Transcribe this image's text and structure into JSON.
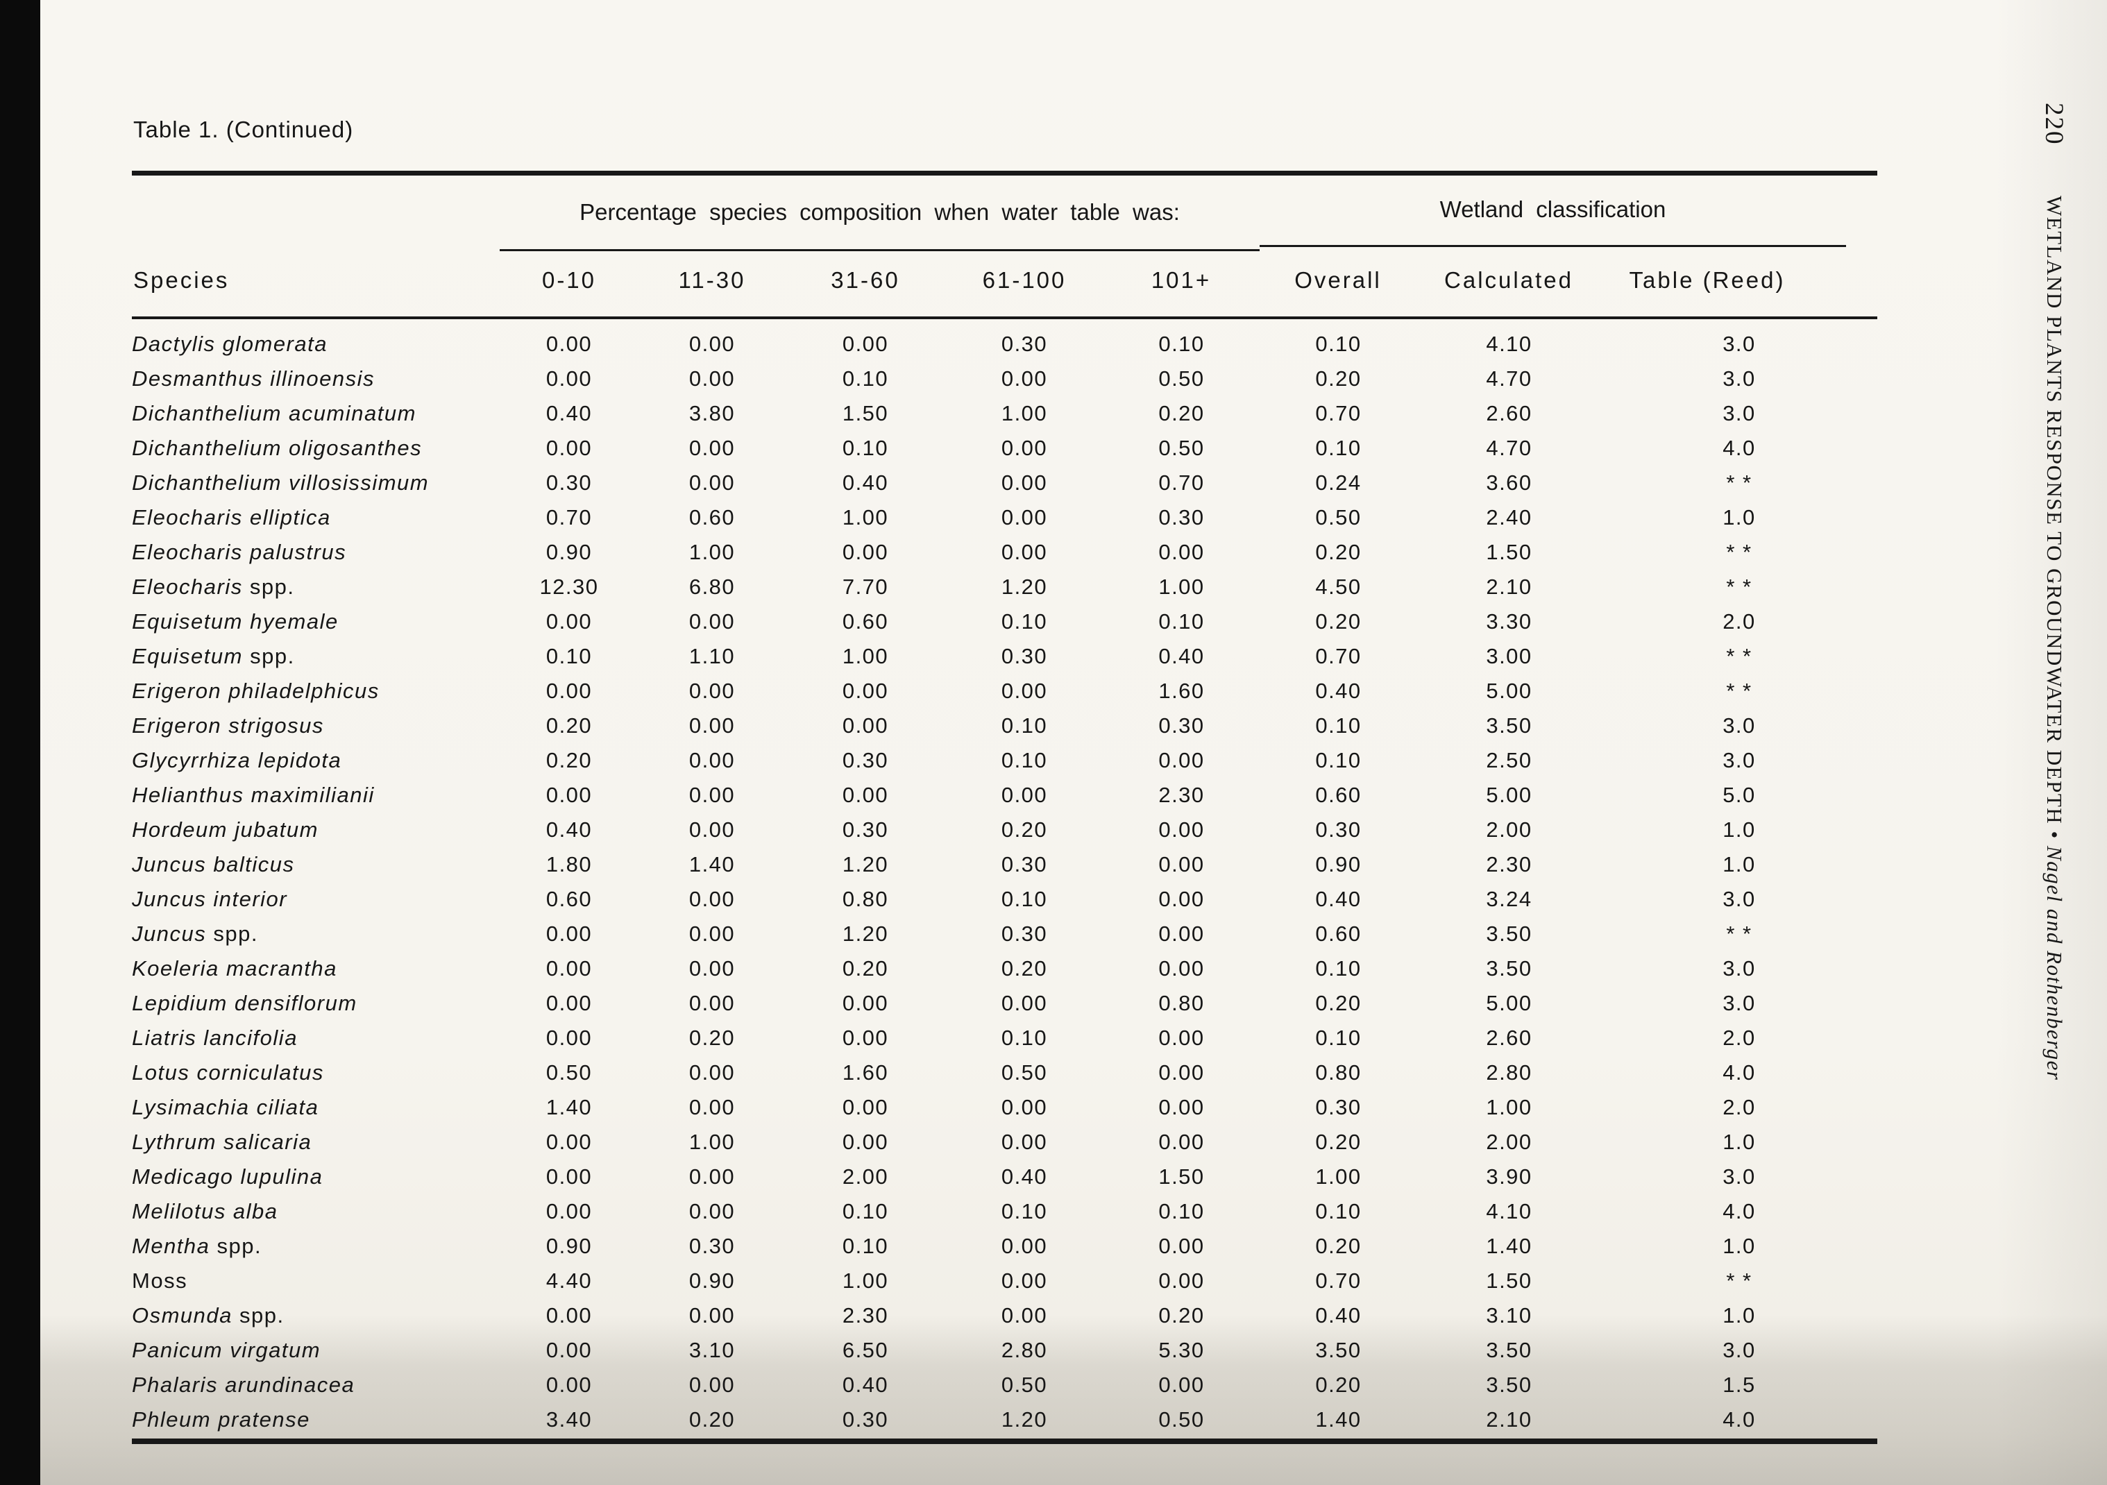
{
  "page": {
    "table_label": "Table 1.  (Continued)",
    "page_number": "220",
    "running_head": "WETLAND PLANTS RESPONSE TO GROUNDWATER DEPTH",
    "running_sep": " • ",
    "running_authors": "Nagel and Rothenberger"
  },
  "table": {
    "group_headers": {
      "percent": "Percentage species composition when water table was:",
      "wetland": "Wetland classification"
    },
    "columns": {
      "species": "Species",
      "c1": "0-10",
      "c2": "11-30",
      "c3": "31-60",
      "c4": "61-100",
      "c5": "101+",
      "c6": "Overall",
      "c7": "Calculated",
      "c8": "Table (Reed)"
    },
    "rows": [
      {
        "sp_i": "Dactylis glomerata",
        "sp_r": "",
        "vals": [
          "0.00",
          "0.00",
          "0.00",
          "0.30",
          "0.10",
          "0.10",
          "4.10",
          "3.0"
        ]
      },
      {
        "sp_i": "Desmanthus illinoensis",
        "sp_r": "",
        "vals": [
          "0.00",
          "0.00",
          "0.10",
          "0.00",
          "0.50",
          "0.20",
          "4.70",
          "3.0"
        ]
      },
      {
        "sp_i": "Dichanthelium acuminatum",
        "sp_r": "",
        "vals": [
          "0.40",
          "3.80",
          "1.50",
          "1.00",
          "0.20",
          "0.70",
          "2.60",
          "3.0"
        ]
      },
      {
        "sp_i": "Dichanthelium oligosanthes",
        "sp_r": "",
        "vals": [
          "0.00",
          "0.00",
          "0.10",
          "0.00",
          "0.50",
          "0.10",
          "4.70",
          "4.0"
        ]
      },
      {
        "sp_i": "Dichanthelium villosissimum",
        "sp_r": "",
        "vals": [
          "0.30",
          "0.00",
          "0.40",
          "0.00",
          "0.70",
          "0.24",
          "3.60",
          "* *"
        ]
      },
      {
        "sp_i": "Eleocharis elliptica",
        "sp_r": "",
        "vals": [
          "0.70",
          "0.60",
          "1.00",
          "0.00",
          "0.30",
          "0.50",
          "2.40",
          "1.0"
        ]
      },
      {
        "sp_i": "Eleocharis palustrus",
        "sp_r": "",
        "vals": [
          "0.90",
          "1.00",
          "0.00",
          "0.00",
          "0.00",
          "0.20",
          "1.50",
          "* *"
        ]
      },
      {
        "sp_i": "Eleocharis",
        "sp_r": " spp.",
        "vals": [
          "12.30",
          "6.80",
          "7.70",
          "1.20",
          "1.00",
          "4.50",
          "2.10",
          "* *"
        ]
      },
      {
        "sp_i": "Equisetum hyemale",
        "sp_r": "",
        "vals": [
          "0.00",
          "0.00",
          "0.60",
          "0.10",
          "0.10",
          "0.20",
          "3.30",
          "2.0"
        ]
      },
      {
        "sp_i": "Equisetum",
        "sp_r": " spp.",
        "vals": [
          "0.10",
          "1.10",
          "1.00",
          "0.30",
          "0.40",
          "0.70",
          "3.00",
          "* *"
        ]
      },
      {
        "sp_i": "Erigeron philadelphicus",
        "sp_r": "",
        "vals": [
          "0.00",
          "0.00",
          "0.00",
          "0.00",
          "1.60",
          "0.40",
          "5.00",
          "* *"
        ]
      },
      {
        "sp_i": "Erigeron strigosus",
        "sp_r": "",
        "vals": [
          "0.20",
          "0.00",
          "0.00",
          "0.10",
          "0.30",
          "0.10",
          "3.50",
          "3.0"
        ]
      },
      {
        "sp_i": "Glycyrrhiza lepidota",
        "sp_r": "",
        "vals": [
          "0.20",
          "0.00",
          "0.30",
          "0.10",
          "0.00",
          "0.10",
          "2.50",
          "3.0"
        ]
      },
      {
        "sp_i": "Helianthus maximilianii",
        "sp_r": "",
        "vals": [
          "0.00",
          "0.00",
          "0.00",
          "0.00",
          "2.30",
          "0.60",
          "5.00",
          "5.0"
        ]
      },
      {
        "sp_i": "Hordeum jubatum",
        "sp_r": "",
        "vals": [
          "0.40",
          "0.00",
          "0.30",
          "0.20",
          "0.00",
          "0.30",
          "2.00",
          "1.0"
        ]
      },
      {
        "sp_i": "Juncus balticus",
        "sp_r": "",
        "vals": [
          "1.80",
          "1.40",
          "1.20",
          "0.30",
          "0.00",
          "0.90",
          "2.30",
          "1.0"
        ]
      },
      {
        "sp_i": "Juncus interior",
        "sp_r": "",
        "vals": [
          "0.60",
          "0.00",
          "0.80",
          "0.10",
          "0.00",
          "0.40",
          "3.24",
          "3.0"
        ]
      },
      {
        "sp_i": "Juncus",
        "sp_r": " spp.",
        "vals": [
          "0.00",
          "0.00",
          "1.20",
          "0.30",
          "0.00",
          "0.60",
          "3.50",
          "* *"
        ]
      },
      {
        "sp_i": "Koeleria macrantha",
        "sp_r": "",
        "vals": [
          "0.00",
          "0.00",
          "0.20",
          "0.20",
          "0.00",
          "0.10",
          "3.50",
          "3.0"
        ]
      },
      {
        "sp_i": "Lepidium densiflorum",
        "sp_r": "",
        "vals": [
          "0.00",
          "0.00",
          "0.00",
          "0.00",
          "0.80",
          "0.20",
          "5.00",
          "3.0"
        ]
      },
      {
        "sp_i": "Liatris lancifolia",
        "sp_r": "",
        "vals": [
          "0.00",
          "0.20",
          "0.00",
          "0.10",
          "0.00",
          "0.10",
          "2.60",
          "2.0"
        ]
      },
      {
        "sp_i": "Lotus corniculatus",
        "sp_r": "",
        "vals": [
          "0.50",
          "0.00",
          "1.60",
          "0.50",
          "0.00",
          "0.80",
          "2.80",
          "4.0"
        ]
      },
      {
        "sp_i": "Lysimachia ciliata",
        "sp_r": "",
        "vals": [
          "1.40",
          "0.00",
          "0.00",
          "0.00",
          "0.00",
          "0.30",
          "1.00",
          "2.0"
        ]
      },
      {
        "sp_i": "Lythrum salicaria",
        "sp_r": "",
        "vals": [
          "0.00",
          "1.00",
          "0.00",
          "0.00",
          "0.00",
          "0.20",
          "2.00",
          "1.0"
        ]
      },
      {
        "sp_i": "Medicago lupulina",
        "sp_r": "",
        "vals": [
          "0.00",
          "0.00",
          "2.00",
          "0.40",
          "1.50",
          "1.00",
          "3.90",
          "3.0"
        ]
      },
      {
        "sp_i": "Melilotus alba",
        "sp_r": "",
        "vals": [
          "0.00",
          "0.00",
          "0.10",
          "0.10",
          "0.10",
          "0.10",
          "4.10",
          "4.0"
        ]
      },
      {
        "sp_i": "Mentha",
        "sp_r": " spp.",
        "vals": [
          "0.90",
          "0.30",
          "0.10",
          "0.00",
          "0.00",
          "0.20",
          "1.40",
          "1.0"
        ]
      },
      {
        "sp_i": "",
        "sp_r": "Moss",
        "vals": [
          "4.40",
          "0.90",
          "1.00",
          "0.00",
          "0.00",
          "0.70",
          "1.50",
          "* *"
        ]
      },
      {
        "sp_i": "Osmunda",
        "sp_r": " spp.",
        "vals": [
          "0.00",
          "0.00",
          "2.30",
          "0.00",
          "0.20",
          "0.40",
          "3.10",
          "1.0"
        ]
      },
      {
        "sp_i": "Panicum virgatum",
        "sp_r": "",
        "vals": [
          "0.00",
          "3.10",
          "6.50",
          "2.80",
          "5.30",
          "3.50",
          "3.50",
          "3.0"
        ]
      },
      {
        "sp_i": "Phalaris arundinacea",
        "sp_r": "",
        "vals": [
          "0.00",
          "0.00",
          "0.40",
          "0.50",
          "0.00",
          "0.20",
          "3.50",
          "1.5"
        ]
      },
      {
        "sp_i": "Phleum pratense",
        "sp_r": "",
        "vals": [
          "3.40",
          "0.20",
          "0.30",
          "1.20",
          "0.50",
          "1.40",
          "2.10",
          "4.0"
        ]
      }
    ]
  }
}
